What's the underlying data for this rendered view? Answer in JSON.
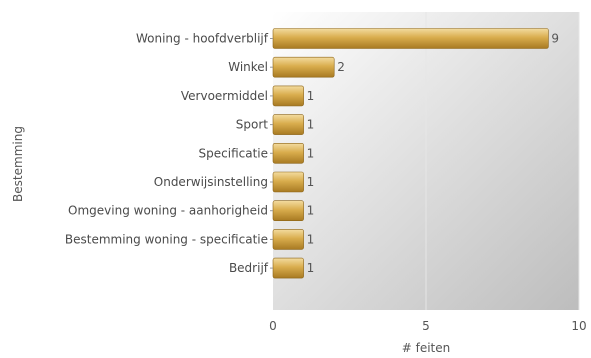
{
  "chart_data": {
    "type": "bar",
    "orientation": "horizontal",
    "categories": [
      "Woning - hoofdverblijf",
      "Winkel",
      "Vervoermiddel",
      "Sport",
      "Specificatie",
      "Onderwijsinstelling",
      "Omgeving woning - aanhorigheid",
      "Bestemming woning - specificatie",
      "Bedrijf"
    ],
    "values": [
      9,
      2,
      1,
      1,
      1,
      1,
      1,
      1,
      1
    ],
    "xlabel": "# feiten",
    "ylabel": "Bestemming",
    "xlim": [
      0,
      10
    ],
    "xticks": [
      0,
      5,
      10
    ],
    "grid": true,
    "data_labels": true,
    "colors": {
      "bar_light": "#f3dca0",
      "bar_mid": "#d9ad4d",
      "bar_dark": "#a87a22",
      "bar_stroke": "#8c6418",
      "plot_bg_light": "#ffffff",
      "plot_bg_dark": "#bdbdbd",
      "grid": "#e6e6e6"
    }
  }
}
